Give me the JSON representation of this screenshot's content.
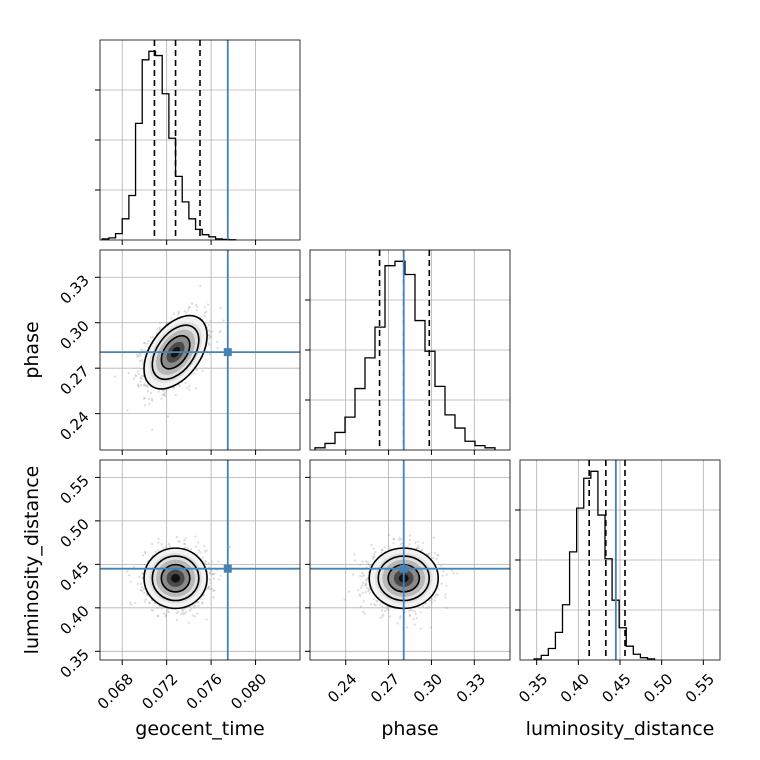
{
  "chart_data": {
    "type": "corner",
    "parameters": [
      "geocent_time",
      "phase",
      "luminosity_distance"
    ],
    "truth_color": "#4682b4",
    "grid": true,
    "panels_1d": [
      {
        "parameter": "geocent_time",
        "xlim": [
          0.066,
          0.084
        ],
        "xticks": [
          "0.068",
          "0.072",
          "0.076",
          "0.080"
        ],
        "xtick_values": [
          0.068,
          0.072,
          0.076,
          0.08
        ],
        "quantiles": [
          0.0709,
          0.0728,
          0.075
        ],
        "truth": 0.0775,
        "bin_width": 0.0006,
        "bin_start": 0.0662,
        "heights": [
          0.5,
          1,
          3,
          10,
          21,
          55,
          85,
          89,
          87,
          69,
          48,
          30,
          18,
          10,
          5,
          2.5,
          1.5,
          0.5,
          0.3,
          0.1
        ]
      },
      {
        "parameter": "phase",
        "xlim": [
          0.215,
          0.355
        ],
        "xticks": [
          "0.24",
          "0.27",
          "0.30",
          "0.33"
        ],
        "xtick_values": [
          0.24,
          0.27,
          0.3,
          0.33
        ],
        "quantiles": [
          0.2637,
          0.2806,
          0.2985
        ],
        "truth": 0.2806,
        "bin_width": 0.007,
        "bin_start": 0.2185,
        "heights": [
          1,
          3,
          8,
          15,
          28,
          42,
          56,
          84,
          86,
          80,
          59,
          45,
          29,
          16,
          10,
          4,
          2,
          1
        ]
      },
      {
        "parameter": "luminosity_distance",
        "xlim": [
          0.33,
          0.57
        ],
        "xticks": [
          "0.35",
          "0.40",
          "0.45",
          "0.50",
          "0.55"
        ],
        "xtick_values": [
          0.35,
          0.4,
          0.45,
          0.5,
          0.55
        ],
        "quantiles": [
          0.413,
          0.433,
          0.456
        ],
        "truth": 0.445,
        "bin_width": 0.0085,
        "bin_start": 0.347,
        "heights": [
          0.5,
          2,
          5,
          12,
          24,
          47,
          66,
          79,
          82,
          63,
          44,
          26,
          14,
          6,
          2.5,
          1,
          0.5
        ]
      }
    ],
    "panels_2d": [
      {
        "x": "geocent_time",
        "y": "phase",
        "xlim": [
          0.066,
          0.084
        ],
        "ylim": [
          0.216,
          0.348
        ],
        "yticks": [
          "0.24",
          "0.27",
          "0.30",
          "0.33"
        ],
        "ytick_values": [
          0.24,
          0.27,
          0.3,
          0.33
        ],
        "center": [
          0.0728,
          0.2805
        ],
        "sigma": [
          0.00135,
          0.0115
        ],
        "rho": 0.45,
        "truth": [
          0.0775,
          0.2806
        ]
      },
      {
        "x": "geocent_time",
        "y": "luminosity_distance",
        "xlim": [
          0.066,
          0.084
        ],
        "ylim": [
          0.34,
          0.57
        ],
        "yticks": [
          "0.35",
          "0.40",
          "0.45",
          "0.50",
          "0.55"
        ],
        "ytick_values": [
          0.35,
          0.4,
          0.45,
          0.5,
          0.55
        ],
        "center": [
          0.0728,
          0.434
        ],
        "sigma": [
          0.00135,
          0.0165
        ],
        "rho": 0.0,
        "truth": [
          0.0775,
          0.445
        ]
      },
      {
        "x": "phase",
        "y": "luminosity_distance",
        "xlim": [
          0.215,
          0.355
        ],
        "ylim": [
          0.34,
          0.57
        ],
        "center": [
          0.2806,
          0.434
        ],
        "sigma": [
          0.0115,
          0.0165
        ],
        "rho": 0.0,
        "truth": [
          0.2806,
          0.445
        ]
      }
    ],
    "xlabel_bottom": [
      "geocent_time",
      "phase",
      "luminosity_distance"
    ],
    "ylabel_left": [
      "phase",
      "luminosity_distance"
    ]
  }
}
